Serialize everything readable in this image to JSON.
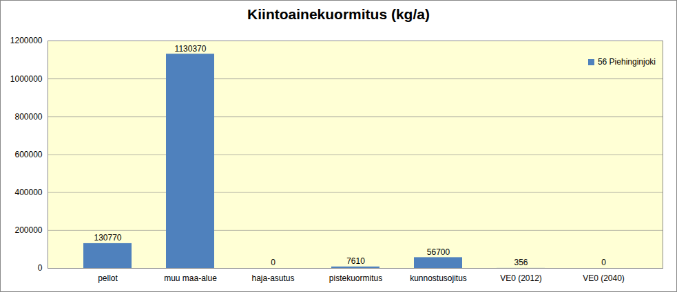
{
  "chart_data": {
    "type": "bar",
    "title": "Kiintoainekuormitus (kg/a)",
    "categories": [
      "pellot",
      "muu maa-alue",
      "haja-asutus",
      "pistekuormitus",
      "kunnostusojitus",
      "VE0 (2012)",
      "VE0 (2040)"
    ],
    "series": [
      {
        "name": "56 Piehinginjoki",
        "color": "#4f81bd",
        "values": [
          130770,
          1130370,
          0,
          7610,
          56700,
          356,
          0
        ]
      }
    ],
    "ylim": [
      0,
      1200000
    ],
    "yticks": [
      0,
      200000,
      400000,
      600000,
      800000,
      1000000,
      1200000
    ],
    "grid": true,
    "data_labels": true,
    "legend": "top-right"
  }
}
